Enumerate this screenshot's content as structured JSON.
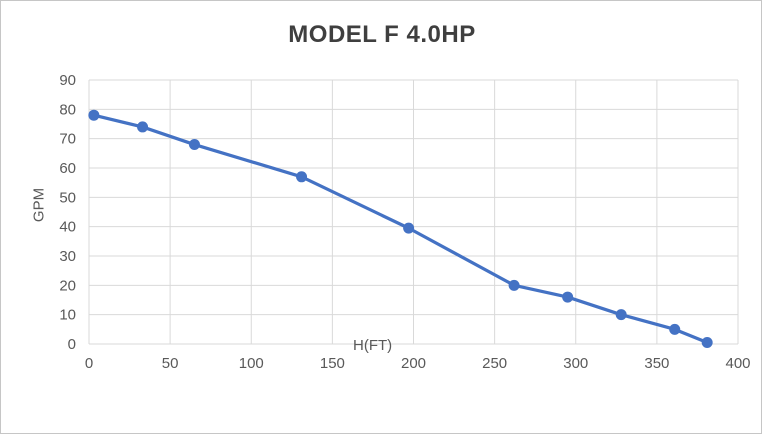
{
  "chart": {
    "title": "MODEL F 4.0HP",
    "x_axis_title": "H(FT)",
    "y_axis_title": "GPM"
  },
  "chart_data": {
    "type": "line",
    "title": "MODEL F 4.0HP",
    "xlabel": "H(FT)",
    "ylabel": "GPM",
    "x": [
      3,
      33,
      65,
      131,
      197,
      262,
      295,
      328,
      361,
      381
    ],
    "y": [
      78,
      74,
      68,
      57,
      39.5,
      20,
      16,
      10,
      5,
      0.5
    ],
    "xlim": [
      0,
      400
    ],
    "ylim": [
      0,
      90
    ],
    "x_ticks": [
      0,
      50,
      100,
      150,
      200,
      250,
      300,
      350,
      400
    ],
    "y_ticks": [
      0,
      10,
      20,
      30,
      40,
      50,
      60,
      70,
      80,
      90
    ],
    "grid": true,
    "legend_position": "none",
    "marker": "circle",
    "colors": {
      "series": "#4472C4",
      "gridline": "#D9D9D9",
      "tick_label": "#595959",
      "title": "#3F3F3F",
      "background": "#FFFFFF",
      "border": "#C6C6C6"
    }
  }
}
